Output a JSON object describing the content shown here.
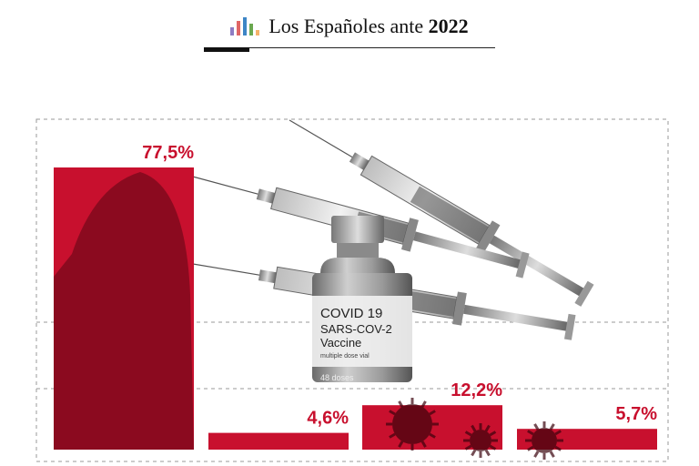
{
  "header": {
    "title_prefix": "Los Españoles ante",
    "title_year": "2022",
    "logo_colors": [
      "#8e7cc3",
      "#e06666",
      "#3d85c6",
      "#6aa84f",
      "#f6b26b"
    ],
    "logo_heights": [
      0.45,
      0.8,
      1.0,
      0.65,
      0.3
    ]
  },
  "vial": {
    "line1": "COVID 19",
    "line2": "SARS-COV-2",
    "line3": "Vaccine",
    "line4": "multiple dose vial",
    "line5": "48 doses"
  },
  "colors": {
    "accent": "#c8102e",
    "grid": "#9a9a9a"
  },
  "chart_data": {
    "type": "bar",
    "categories": [
      "",
      "",
      "",
      ""
    ],
    "values": [
      77.5,
      4.6,
      12.2,
      5.7
    ],
    "value_labels": [
      "77,5%",
      "4,6%",
      "12,2%",
      "5,7%"
    ],
    "title": "",
    "xlabel": "",
    "ylabel": "",
    "ylim": [
      0,
      100
    ],
    "grid": true
  }
}
